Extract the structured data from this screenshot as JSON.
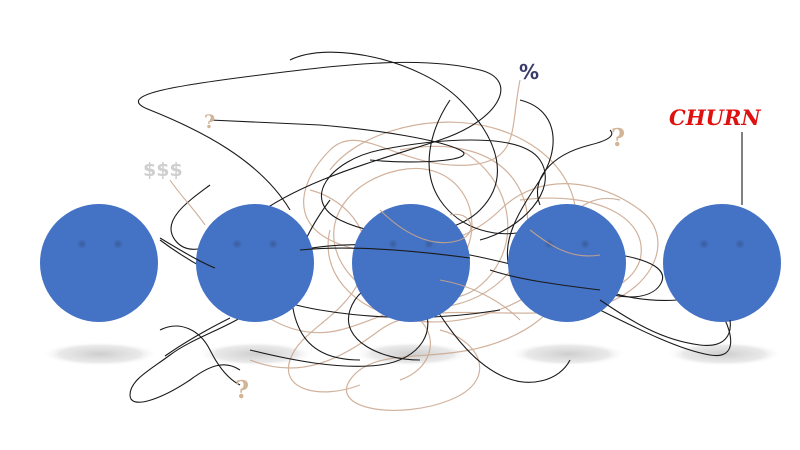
{
  "labels": {
    "dollars": "$$$",
    "question_top": "?",
    "question_right": "?",
    "question_bottom": "?",
    "percent": "%",
    "churn": "CHURN"
  },
  "colors": {
    "face": "#4472c4",
    "eye": "#2f4f8f",
    "shadow": "#d6d6d6",
    "dark_line": "#1a1a1a",
    "tan_line": "#c9a58c",
    "churn_text": "#e01010",
    "question_mark": "#d2b496",
    "dollars_text": "#cfcfcf",
    "percent_text": "#3a3a6a"
  },
  "icons": [
    "person-face-icon",
    "person-face-icon",
    "person-face-icon",
    "person-face-icon",
    "person-face-icon"
  ]
}
